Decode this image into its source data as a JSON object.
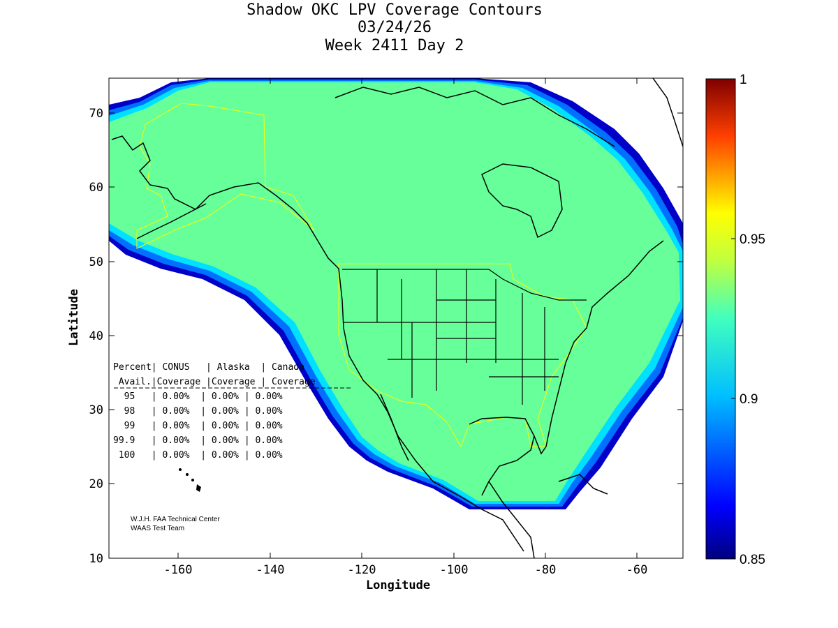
{
  "title": {
    "line1": "Shadow OKC LPV Coverage Contours",
    "line2": "03/24/26",
    "line3": "Week 2411 Day 2"
  },
  "axes": {
    "xlabel": "Longitude",
    "ylabel": "Latitude",
    "xticks": [
      "-160",
      "-140",
      "-120",
      "-100",
      "-80",
      "-60"
    ],
    "yticks": [
      "70",
      "60",
      "50",
      "40",
      "30",
      "20",
      "10"
    ]
  },
  "colorbar": {
    "ticks": [
      "1",
      "0.95",
      "0.9",
      "0.85"
    ],
    "min": 0.85,
    "max": 1,
    "colormap": "jet"
  },
  "stats_table": {
    "header1": "Percent| CONUS   | Alaska  | Canada",
    "header2": " Avail.|Coverage |Coverage | Coverage",
    "rows": [
      "  95   | 0.00%  | 0.00% | 0.00%",
      "  98   | 0.00%  | 0.00% | 0.00%",
      "  99   | 0.00%  | 0.00% | 0.00%",
      "99.9   | 0.00%  | 0.00% | 0.00%",
      " 100   | 0.00%  | 0.00% | 0.00%"
    ]
  },
  "credits": {
    "line1": "W.J.H. FAA Technical Center",
    "line2": "WAAS Test Team"
  },
  "colors": {
    "coverage_fill": "#66ff99",
    "edge_cyan": "#00e0ff",
    "edge_blue": "#0070ff",
    "edge_deep": "#0000c8",
    "boundary_yellow": "#ffff00"
  },
  "chart_data": {
    "type": "heatmap",
    "title": "Shadow OKC LPV Coverage Contours",
    "xlabel": "Longitude",
    "ylabel": "Latitude",
    "xlim": [
      -175,
      -50
    ],
    "ylim": [
      10,
      75
    ],
    "colorbar_range": [
      0.85,
      1
    ],
    "dominant_value": 0.92
  }
}
